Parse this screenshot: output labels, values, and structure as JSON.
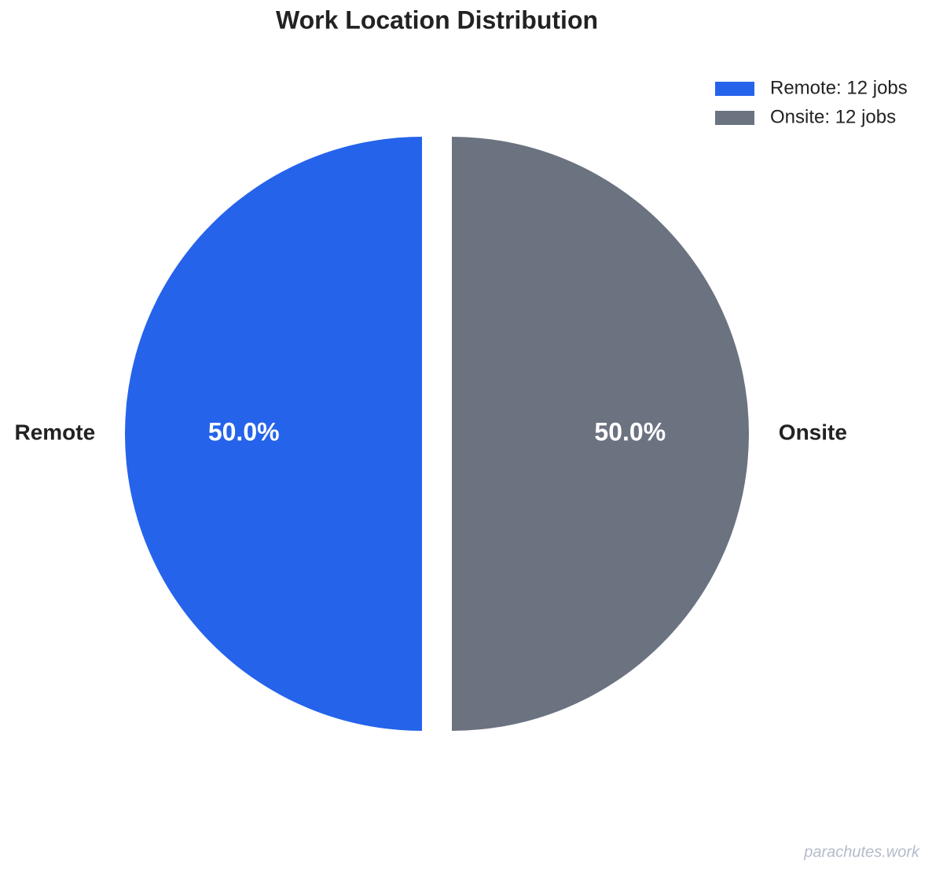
{
  "chart_data": {
    "type": "pie",
    "title": "Work Location Distribution",
    "categories": [
      "Remote",
      "Onsite"
    ],
    "values": [
      50,
      50
    ],
    "value_labels": [
      "50.0%",
      "50.0%"
    ],
    "colors": [
      "#2563eb",
      "#6b7280"
    ],
    "legend_labels": [
      "Remote: 12 jobs",
      "Onsite: 12 jobs"
    ],
    "legend_position": "upper right"
  },
  "watermark": "parachutes.work"
}
